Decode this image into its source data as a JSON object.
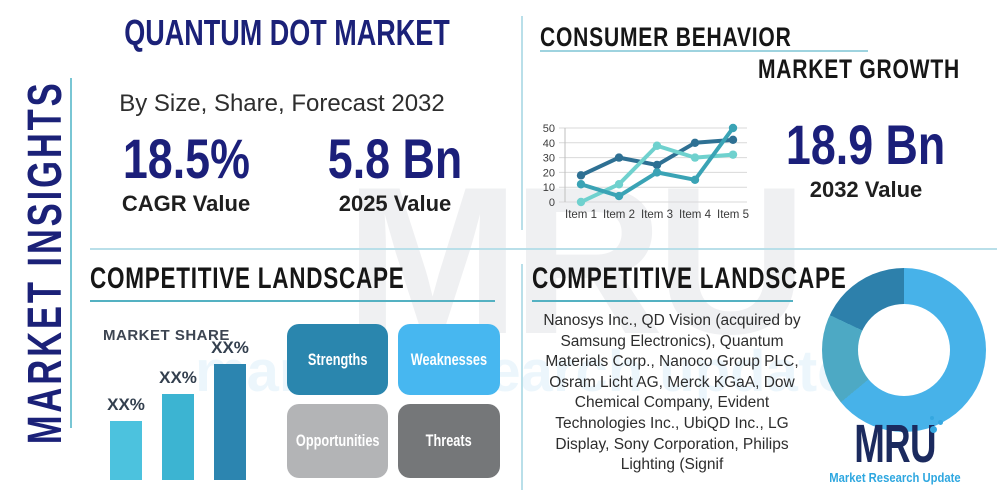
{
  "header": {
    "title": "QUANTUM DOT MARKET",
    "subtitle": "By Size, Share, Forecast 2032"
  },
  "sidebar": {
    "label": "MARKET INSIGHTS"
  },
  "stats": {
    "cagr": {
      "value": "18.5%",
      "label": "CAGR Value"
    },
    "y2025": {
      "value": "5.8 Bn",
      "label": "2025 Value"
    },
    "y2032": {
      "value": "18.9 Bn",
      "label": "2032 Value"
    }
  },
  "sections": {
    "consumer": {
      "heading": "CONSUMER BEHAVIOR",
      "subheading": "MARKET GROWTH"
    },
    "competitive_left": {
      "heading": "COMPETITIVE LANDSCAPE"
    },
    "competitive_right": {
      "heading": "COMPETITIVE LANDSCAPE",
      "companies": "Nanosys Inc., QD Vision (acquired by Samsung Electronics), Quantum Materials Corp., Nanoco Group PLC, Osram Licht AG, Merck KGaA, Dow Chemical Company, Evident Technologies Inc., UbiQD Inc., LG Display, Sony Corporation, Philips Lighting (Signif"
    }
  },
  "swot": {
    "items": [
      {
        "label": "Strengths",
        "color": "#2a86ae"
      },
      {
        "label": "Weaknesses",
        "color": "#47b7f0"
      },
      {
        "label": "Opportunities",
        "color": "#b3b4b6"
      },
      {
        "label": "Threats",
        "color": "#757779"
      }
    ]
  },
  "logo": {
    "name": "MRU",
    "tagline": "Market Research Update",
    "navy": "#1b2a5e",
    "blue": "#2ea7e0"
  },
  "colors": {
    "title_navy": "#1b2178",
    "stat_navy": "#1b1f7a",
    "heading_black": "#161616",
    "divider_light_blue": "#b9dfe9",
    "underline_teal": "#54b1c2",
    "sidebar_line_teal": "#79c6d4"
  },
  "chart_data": [
    {
      "id": "market-growth-line",
      "type": "line",
      "x_labels": [
        "Item 1",
        "Item 2",
        "Item 3",
        "Item 4",
        "Item 5"
      ],
      "y_ticks": [
        0,
        10,
        20,
        30,
        40,
        50
      ],
      "ylim": [
        0,
        50
      ],
      "grid": true,
      "legend": "none",
      "series": [
        {
          "name": "series-dark-blue",
          "color": "#2e7093",
          "values": [
            18,
            30,
            25,
            40,
            42
          ]
        },
        {
          "name": "series-light-aqua",
          "color": "#6fd1ce",
          "values": [
            0,
            12,
            38,
            30,
            32
          ]
        },
        {
          "name": "series-teal",
          "color": "#3aa3b5",
          "values": [
            12,
            4,
            20,
            15,
            50
          ]
        }
      ]
    },
    {
      "id": "market-share-bars",
      "type": "bar",
      "title": "MARKET SHARE",
      "labels": [
        "XX%",
        "XX%",
        "XX%"
      ],
      "relative_heights_pct": [
        50,
        73,
        98
      ],
      "colors": [
        "#4cc2de",
        "#3cb4d2",
        "#2c85b0"
      ]
    },
    {
      "id": "competitors-donut",
      "type": "pie",
      "donut": true,
      "segments": [
        {
          "name": "segment-light-blue",
          "color": "#47b2e9",
          "value": 64
        },
        {
          "name": "segment-teal",
          "color": "#4da9c4",
          "value": 18
        },
        {
          "name": "segment-dark-blue",
          "color": "#2d80ab",
          "value": 18
        }
      ]
    }
  ]
}
